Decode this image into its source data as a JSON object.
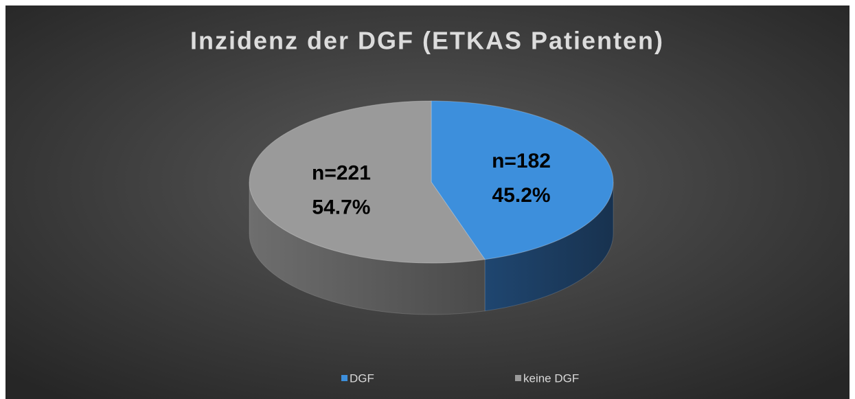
{
  "chart_data": {
    "type": "pie3d",
    "title": "Inzidenz der DGF (ETKAS Patienten)",
    "categories": [
      "DGF",
      "keine DGF"
    ],
    "values": [
      45.2,
      54.7
    ],
    "value_labels": [
      "45.2%",
      "54.7%"
    ],
    "count_labels": [
      "n=182",
      "n=221"
    ],
    "colors": [
      "#3d8fdc",
      "#9a9a9a"
    ],
    "legend": "bottom"
  }
}
